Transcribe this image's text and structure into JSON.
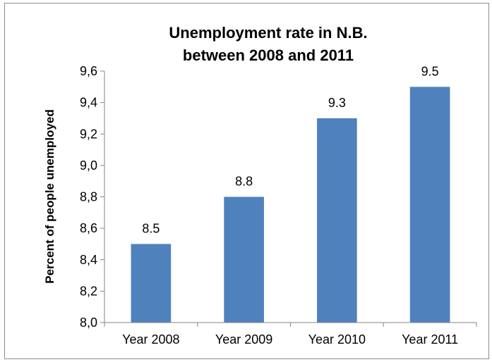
{
  "chart_data": {
    "type": "bar",
    "title_lines": [
      "Unemployment rate in N.B.",
      "between 2008 and 2011"
    ],
    "xlabel": "",
    "ylabel": "Percent of people unemployed",
    "categories": [
      "Year 2008",
      "Year 2009",
      "Year 2010",
      "Year 2011"
    ],
    "values": [
      8.5,
      8.8,
      9.3,
      9.5
    ],
    "data_labels": [
      "8.5",
      "8.8",
      "9.3",
      "9.5"
    ],
    "ylim": [
      8.0,
      9.6
    ],
    "y_ticks": [
      "8,0",
      "8,2",
      "8,4",
      "8,6",
      "8,8",
      "9,0",
      "9,2",
      "9,4",
      "9,6"
    ],
    "y_tick_values": [
      8.0,
      8.2,
      8.4,
      8.6,
      8.8,
      9.0,
      9.2,
      9.4,
      9.6
    ],
    "grid": false,
    "legend": "none",
    "bar_color": "#4f81bd"
  }
}
